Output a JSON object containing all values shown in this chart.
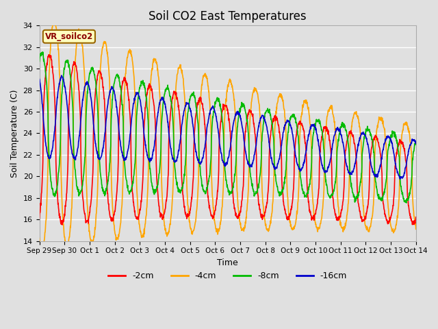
{
  "title": "Soil CO2 East Temperatures",
  "xlabel": "Time",
  "ylabel": "Soil Temperature (C)",
  "ylim": [
    14,
    34
  ],
  "yticks": [
    14,
    16,
    18,
    20,
    22,
    24,
    26,
    28,
    30,
    32,
    34
  ],
  "annotation_text": "VR_soilco2",
  "annotation_color": "#8B0000",
  "annotation_bg": "#FFFFC0",
  "annotation_border": "#996600",
  "bg_color": "#E0E0E0",
  "grid_color": "#FFFFFF",
  "line_colors": {
    "-2cm": "#FF0000",
    "-4cm": "#FFA500",
    "-8cm": "#00BB00",
    "-16cm": "#0000CC"
  },
  "x_tick_labels": [
    "Sep 29",
    "Sep 30",
    "Oct 1",
    "Oct 2",
    "Oct 3",
    "Oct 4",
    "Oct 5",
    "Oct 6",
    "Oct 7",
    "Oct 8",
    "Oct 9",
    "Oct 10",
    "Oct 11",
    "Oct 12",
    "Oct 13",
    "Oct 14"
  ],
  "num_points": 1500
}
